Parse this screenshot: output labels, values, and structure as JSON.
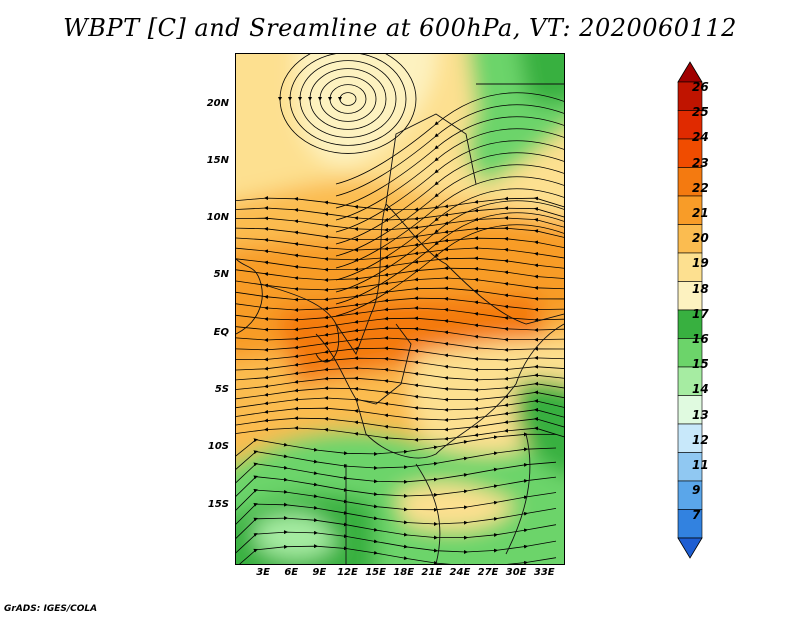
{
  "title": "WBPT [C] and Sreamline at 600hPa, VT: 2020060112",
  "credit": "GrADS: IGES/COLA",
  "lat_labels": [
    {
      "text": "20N",
      "lat": 20
    },
    {
      "text": "15N",
      "lat": 15
    },
    {
      "text": "10N",
      "lat": 10
    },
    {
      "text": "5N",
      "lat": 5
    },
    {
      "text": "EQ",
      "lat": 0
    },
    {
      "text": "5S",
      "lat": -5
    },
    {
      "text": "10S",
      "lat": -10
    },
    {
      "text": "15S",
      "lat": -15
    }
  ],
  "lon_labels": [
    {
      "text": "3E",
      "lon": 3
    },
    {
      "text": "6E",
      "lon": 6
    },
    {
      "text": "9E",
      "lon": 9
    },
    {
      "text": "12E",
      "lon": 12
    },
    {
      "text": "15E",
      "lon": 15
    },
    {
      "text": "18E",
      "lon": 18
    },
    {
      "text": "21E",
      "lon": 21
    },
    {
      "text": "24E",
      "lon": 24
    },
    {
      "text": "27E",
      "lon": 27
    },
    {
      "text": "30E",
      "lon": 30
    },
    {
      "text": "33E",
      "lon": 33
    }
  ],
  "colorbar": {
    "levels": [
      "26",
      "25",
      "24",
      "23",
      "22",
      "21",
      "20",
      "19",
      "18",
      "17",
      "16",
      "15",
      "14",
      "13",
      "12",
      "11",
      "9",
      "7"
    ],
    "colors": [
      "#a00000",
      "#c01400",
      "#e02a00",
      "#f04c00",
      "#f47a10",
      "#f89c28",
      "#fbbc50",
      "#fde090",
      "#fdf2c0",
      "#38b040",
      "#6cd46a",
      "#a6eca2",
      "#e0fae0",
      "#c8e8fa",
      "#90c8f2",
      "#5aa6ea",
      "#3282e0",
      "#1e5ed2"
    ]
  },
  "map": {
    "lon_range": [
      0,
      35
    ],
    "lat_range": [
      -20,
      24.5
    ]
  }
}
